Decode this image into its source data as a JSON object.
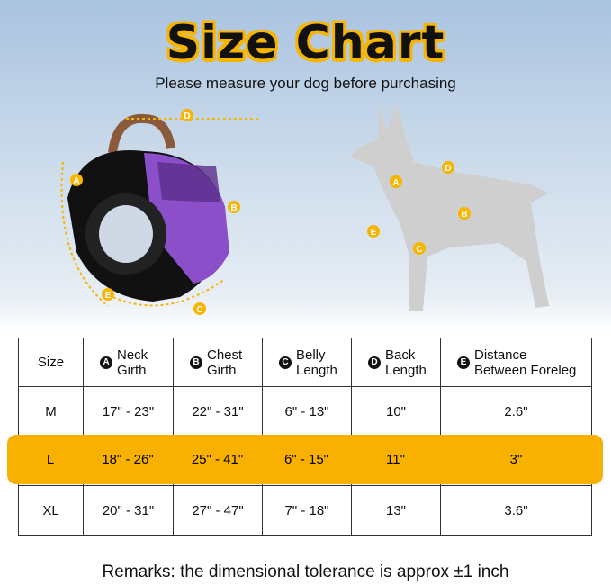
{
  "title": "Size Chart",
  "subtitle": "Please measure your dog before purchasing",
  "diagram_labels": [
    "A",
    "B",
    "C",
    "D",
    "E"
  ],
  "table": {
    "size_header": "Size",
    "columns": [
      {
        "badge": "A",
        "label": "Neck Girth"
      },
      {
        "badge": "B",
        "label": "Chest Girth"
      },
      {
        "badge": "C",
        "label": "Belly Length"
      },
      {
        "badge": "D",
        "label": "Back Length"
      },
      {
        "badge": "E",
        "label": "Distance Between Foreleg"
      }
    ],
    "rows": [
      {
        "size": "M",
        "values": [
          "17\" - 23\"",
          "22\" - 31\"",
          "6\" - 13\"",
          "10\"",
          "2.6\""
        ]
      },
      {
        "size": "L",
        "values": [
          "18\" - 26\"",
          "25\" - 41\"",
          "6\" - 15\"",
          "11\"",
          "3\""
        ],
        "highlighted": true
      },
      {
        "size": "XL",
        "values": [
          "20\" - 31\"",
          "27\" - 47\"",
          "7\" - 18\"",
          "13\"",
          "3.6\""
        ]
      }
    ]
  },
  "highlight_color": "#f8b100",
  "remarks": {
    "label": "Remarks:",
    "text": " the dimensional tolerance is approx ±1 inch"
  }
}
